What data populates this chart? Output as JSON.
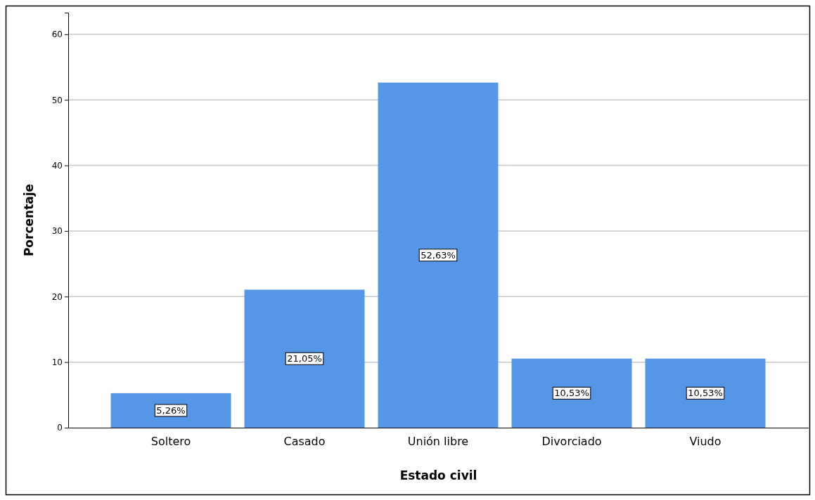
{
  "chart_data": {
    "type": "bar",
    "xlabel": "Estado civil",
    "ylabel": "Porcentaje",
    "categories": [
      "Soltero",
      "Casado",
      "Unión libre",
      "Divorciado",
      "Viudo"
    ],
    "values": [
      5.26,
      21.05,
      52.63,
      10.53,
      10.53
    ],
    "value_labels": [
      "5,26%",
      "21,05%",
      "52,63%",
      "10,53%",
      "10,53%"
    ],
    "color": "#5596e6",
    "ylim": [
      0,
      63.3
    ],
    "yticks": [
      0,
      10,
      20,
      30,
      40,
      50,
      60
    ],
    "grid": "y"
  }
}
